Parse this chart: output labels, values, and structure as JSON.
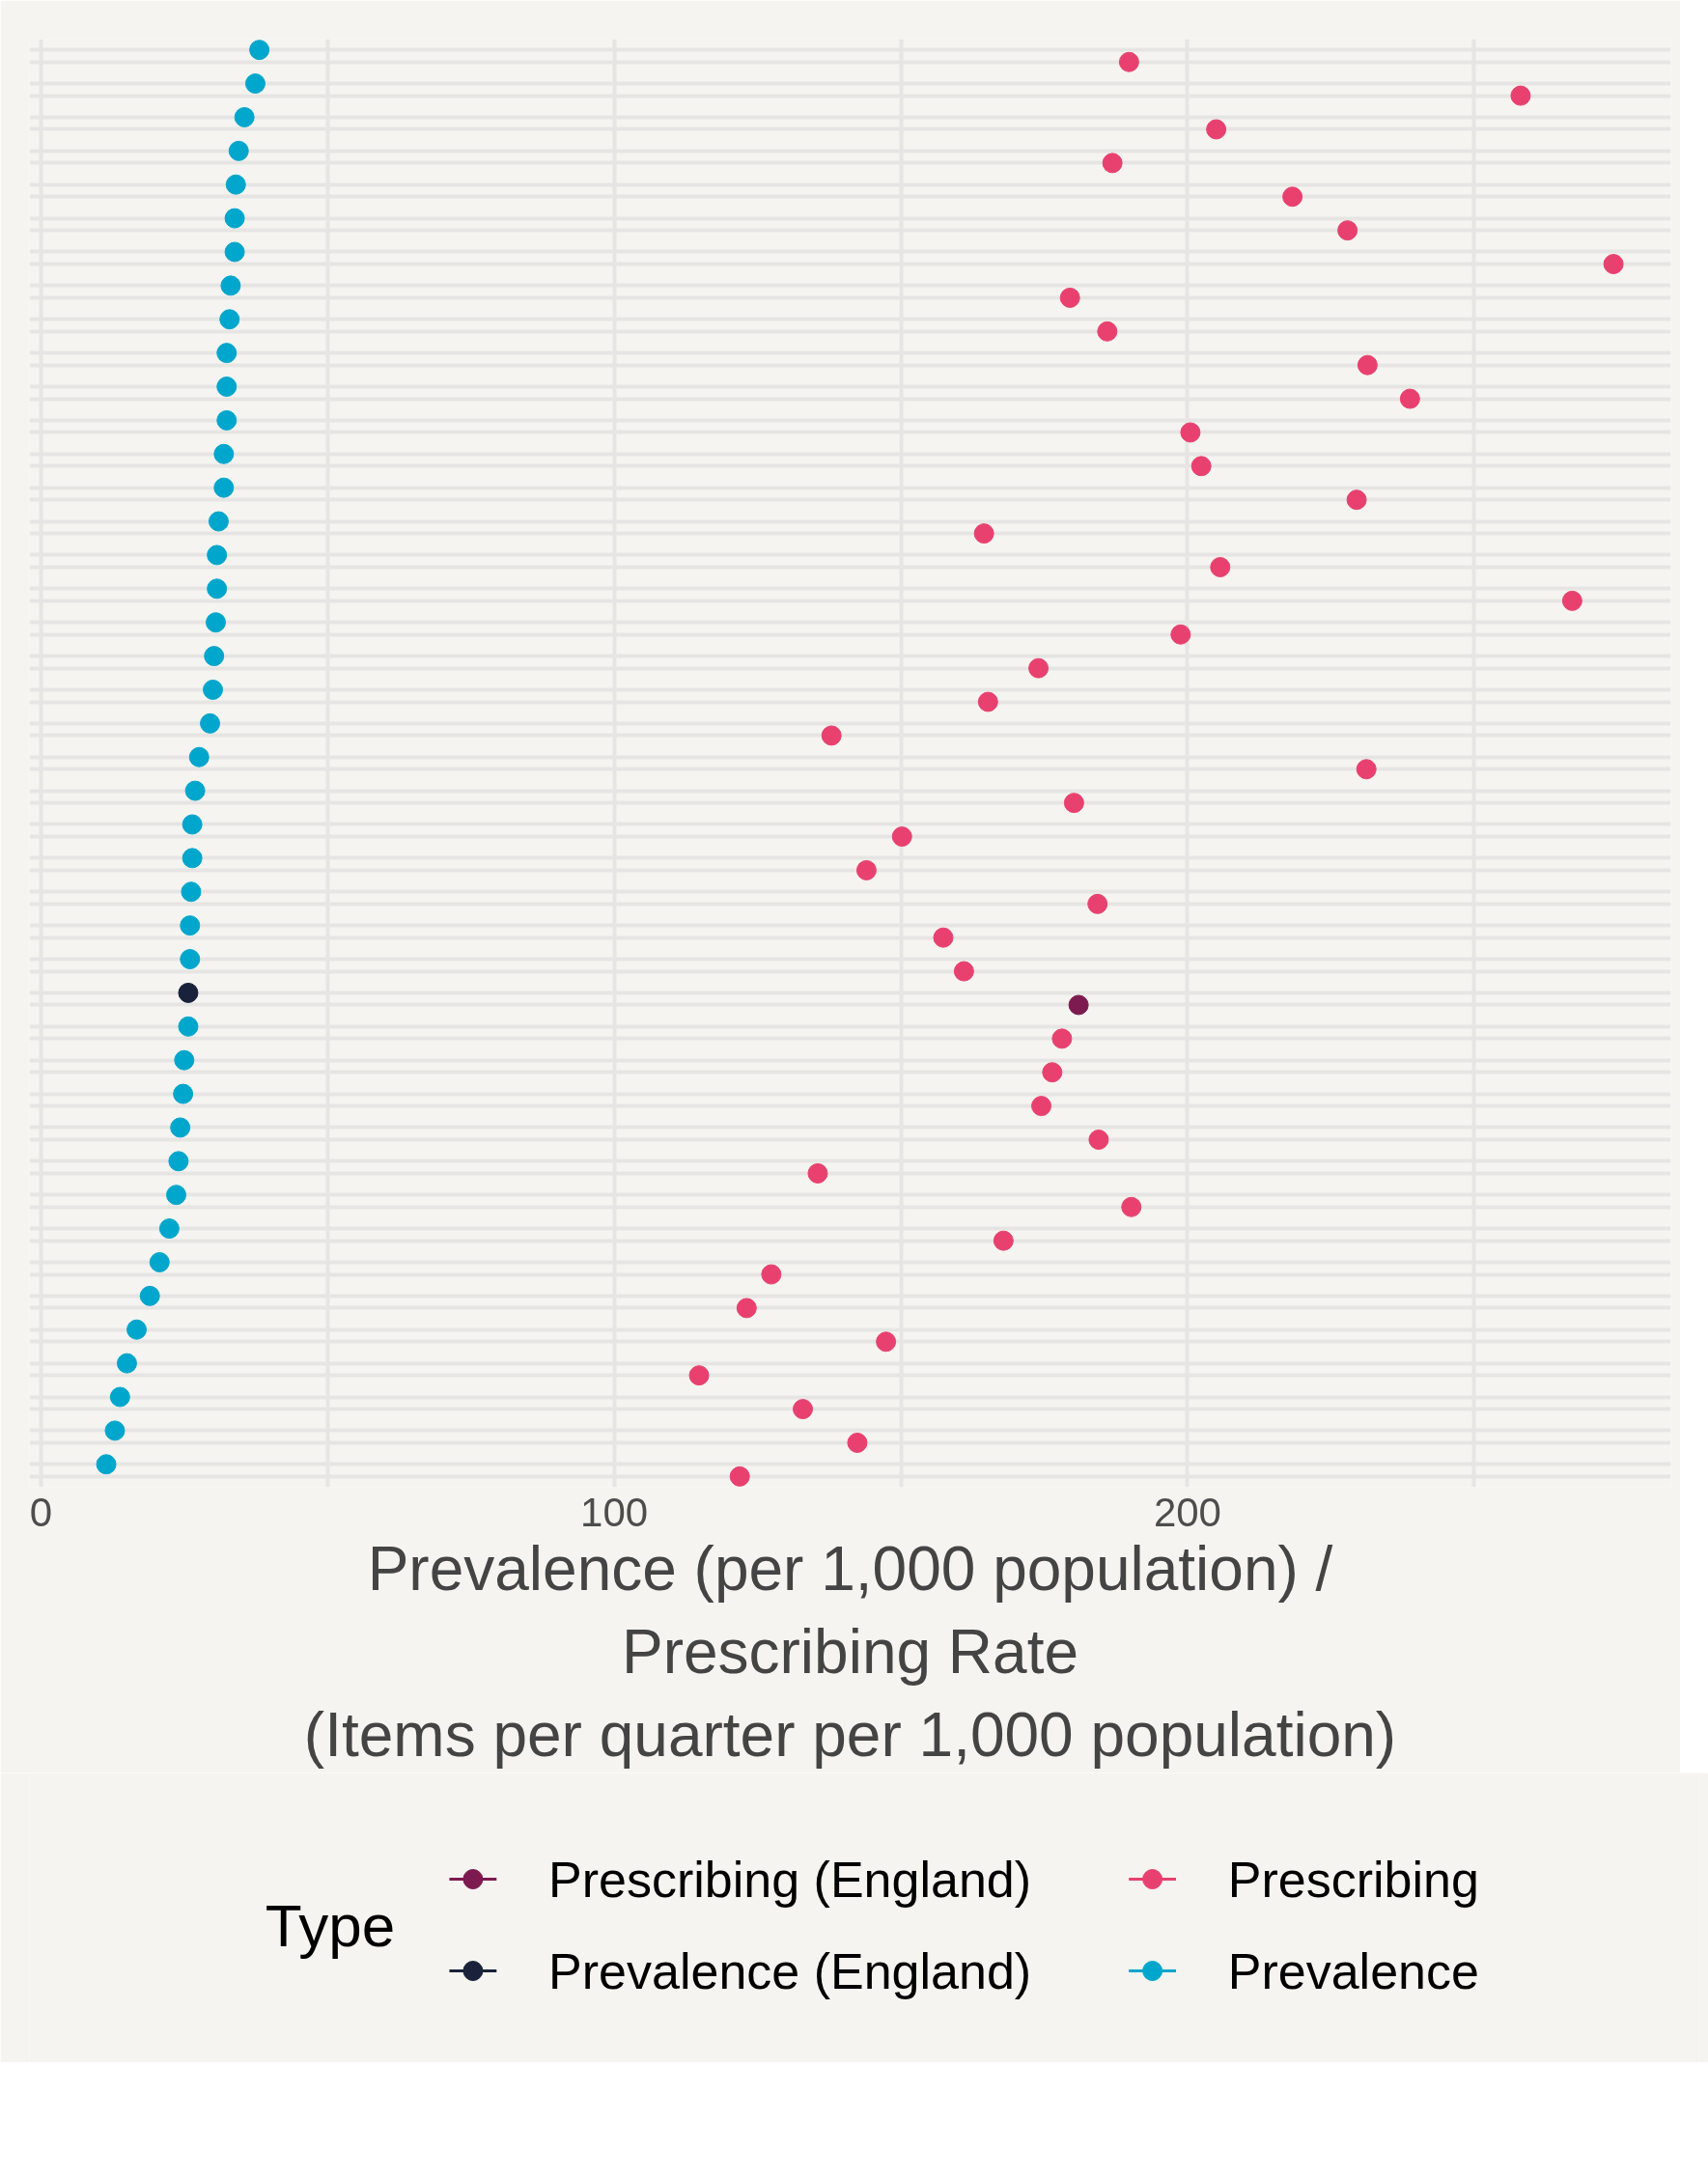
{
  "chart_data": {
    "type": "scatter",
    "xlabel": "Prevalence (per 1,000 population) /\nPrescribing Rate\n(Items per quarter per 1,000 population)",
    "categories": [
      null,
      null,
      null,
      null,
      null,
      null,
      null,
      null,
      null,
      null,
      null,
      null,
      null,
      null,
      null,
      null,
      null,
      null,
      null,
      null,
      null,
      null,
      null,
      null,
      null,
      null,
      null,
      null,
      null,
      null,
      null,
      null,
      null,
      null,
      null,
      null,
      null,
      null,
      null,
      null,
      null,
      null,
      null
    ],
    "series": [
      {
        "name": "Prescribing (England)",
        "color": "#7d1a4f",
        "values": [
          null,
          null,
          null,
          null,
          null,
          null,
          null,
          null,
          null,
          null,
          null,
          null,
          null,
          null,
          null,
          null,
          null,
          null,
          null,
          null,
          null,
          null,
          null,
          null,
          null,
          null,
          null,
          null,
          181.0,
          null,
          null,
          null,
          null,
          null,
          null,
          null,
          null,
          null,
          null,
          null,
          null,
          null,
          null
        ]
      },
      {
        "name": "Prescribing",
        "color": "#e8416f",
        "values": [
          189.8,
          258.1,
          205.0,
          186.9,
          218.3,
          227.9,
          274.3,
          179.5,
          186.0,
          231.4,
          238.8,
          200.5,
          202.4,
          229.5,
          164.5,
          205.7,
          267.1,
          198.8,
          174.0,
          165.2,
          137.9,
          231.2,
          180.2,
          150.2,
          144.0,
          184.3,
          157.4,
          161.0,
          null,
          178.1,
          176.4,
          174.5,
          184.5,
          135.5,
          190.2,
          167.9,
          127.4,
          123.1,
          147.4,
          114.8,
          132.9,
          142.4,
          121.9
        ]
      },
      {
        "name": "Prevalence (England)",
        "color": "#19223a",
        "values": [
          null,
          null,
          null,
          null,
          null,
          null,
          null,
          null,
          null,
          null,
          null,
          null,
          null,
          null,
          null,
          null,
          null,
          null,
          null,
          null,
          null,
          null,
          null,
          null,
          null,
          null,
          null,
          null,
          25.7,
          null,
          null,
          null,
          null,
          null,
          null,
          null,
          null,
          null,
          null,
          null,
          null,
          null,
          null
        ]
      },
      {
        "name": "Prevalence",
        "color": "#00a6cc",
        "values": [
          38.1,
          37.4,
          35.5,
          34.5,
          34.0,
          33.8,
          33.8,
          33.1,
          32.9,
          32.4,
          32.4,
          32.4,
          31.9,
          31.9,
          31.0,
          30.7,
          30.7,
          30.5,
          30.2,
          30.0,
          29.5,
          27.6,
          26.9,
          26.4,
          26.4,
          26.2,
          26.0,
          26.0,
          null,
          25.7,
          25.0,
          24.8,
          24.3,
          24.0,
          23.6,
          22.4,
          20.7,
          19.0,
          16.7,
          15.0,
          13.8,
          12.9,
          11.4
        ]
      }
    ],
    "xlim": [
      -2,
      284.3
    ],
    "xticks": [
      0,
      {
        "value": 50,
        "label": null
      },
      100,
      {
        "value": 150,
        "label": null
      },
      200,
      {
        "value": 250,
        "label": null
      }
    ],
    "orientation": "horizontal",
    "tick_labels": "x",
    "grid": true,
    "legend": "bottom",
    "legend_title": "Type",
    "marker": "circle"
  }
}
